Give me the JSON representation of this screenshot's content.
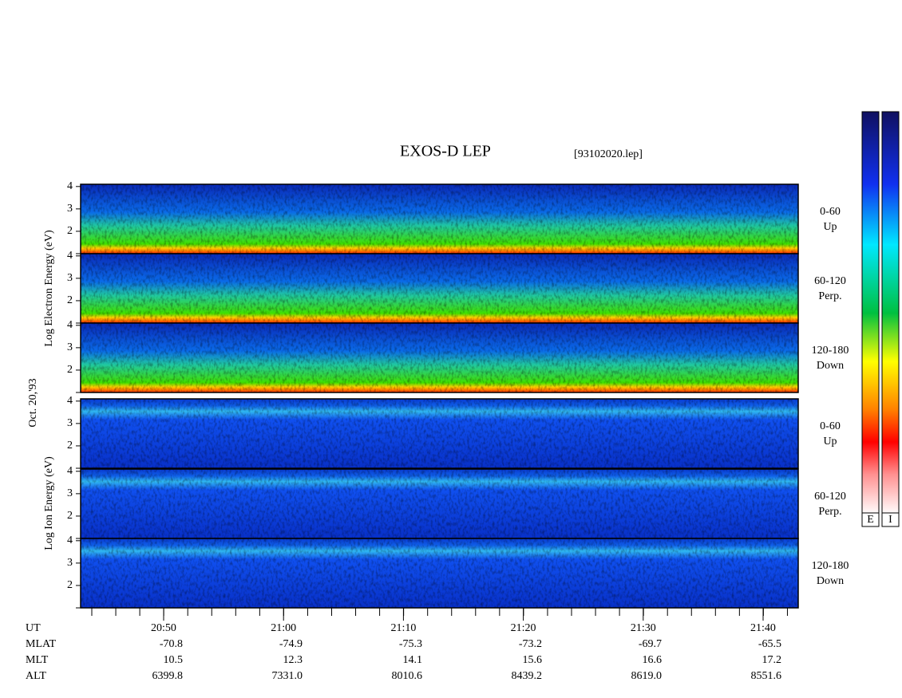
{
  "title": "EXOS-D LEP",
  "file": "[93102020.lep]",
  "date": "Oct. 20,'93",
  "ylim": [
    1,
    4.1
  ],
  "yticks": [
    1,
    2,
    3,
    4
  ],
  "ytick_labels": [
    null,
    "2",
    "3",
    "4"
  ],
  "groups": [
    {
      "ylabel": "Log  Electron  Energy (eV)",
      "kind": "electron",
      "panels": [
        {
          "range": "0-60",
          "dir": "Up"
        },
        {
          "range": "60-120",
          "dir": "Perp."
        },
        {
          "range": "120-180",
          "dir": "Down"
        }
      ]
    },
    {
      "ylabel": "Log  Ion  Energy (eV)",
      "kind": "ion",
      "panels": [
        {
          "range": "0-60",
          "dir": "Up"
        },
        {
          "range": "60-120",
          "dir": "Perp."
        },
        {
          "range": "120-180",
          "dir": "Down"
        }
      ]
    }
  ],
  "table": {
    "rows": [
      {
        "label": "UT",
        "values": [
          "20:50",
          "21:00",
          "21:10",
          "21:20",
          "21:30",
          "21:40"
        ]
      },
      {
        "label": "MLAT",
        "values": [
          "-70.8",
          "-74.9",
          "-75.3",
          "-73.2",
          "-69.7",
          "-65.5"
        ]
      },
      {
        "label": "MLT",
        "values": [
          "10.5",
          "12.3",
          "14.1",
          "15.6",
          "16.6",
          "17.2"
        ]
      },
      {
        "label": "ALT",
        "values": [
          "6399.8",
          "7331.0",
          "8010.6",
          "8439.2",
          "8619.0",
          "8551.6"
        ]
      }
    ]
  },
  "colorbars": [
    "E",
    "I"
  ]
}
